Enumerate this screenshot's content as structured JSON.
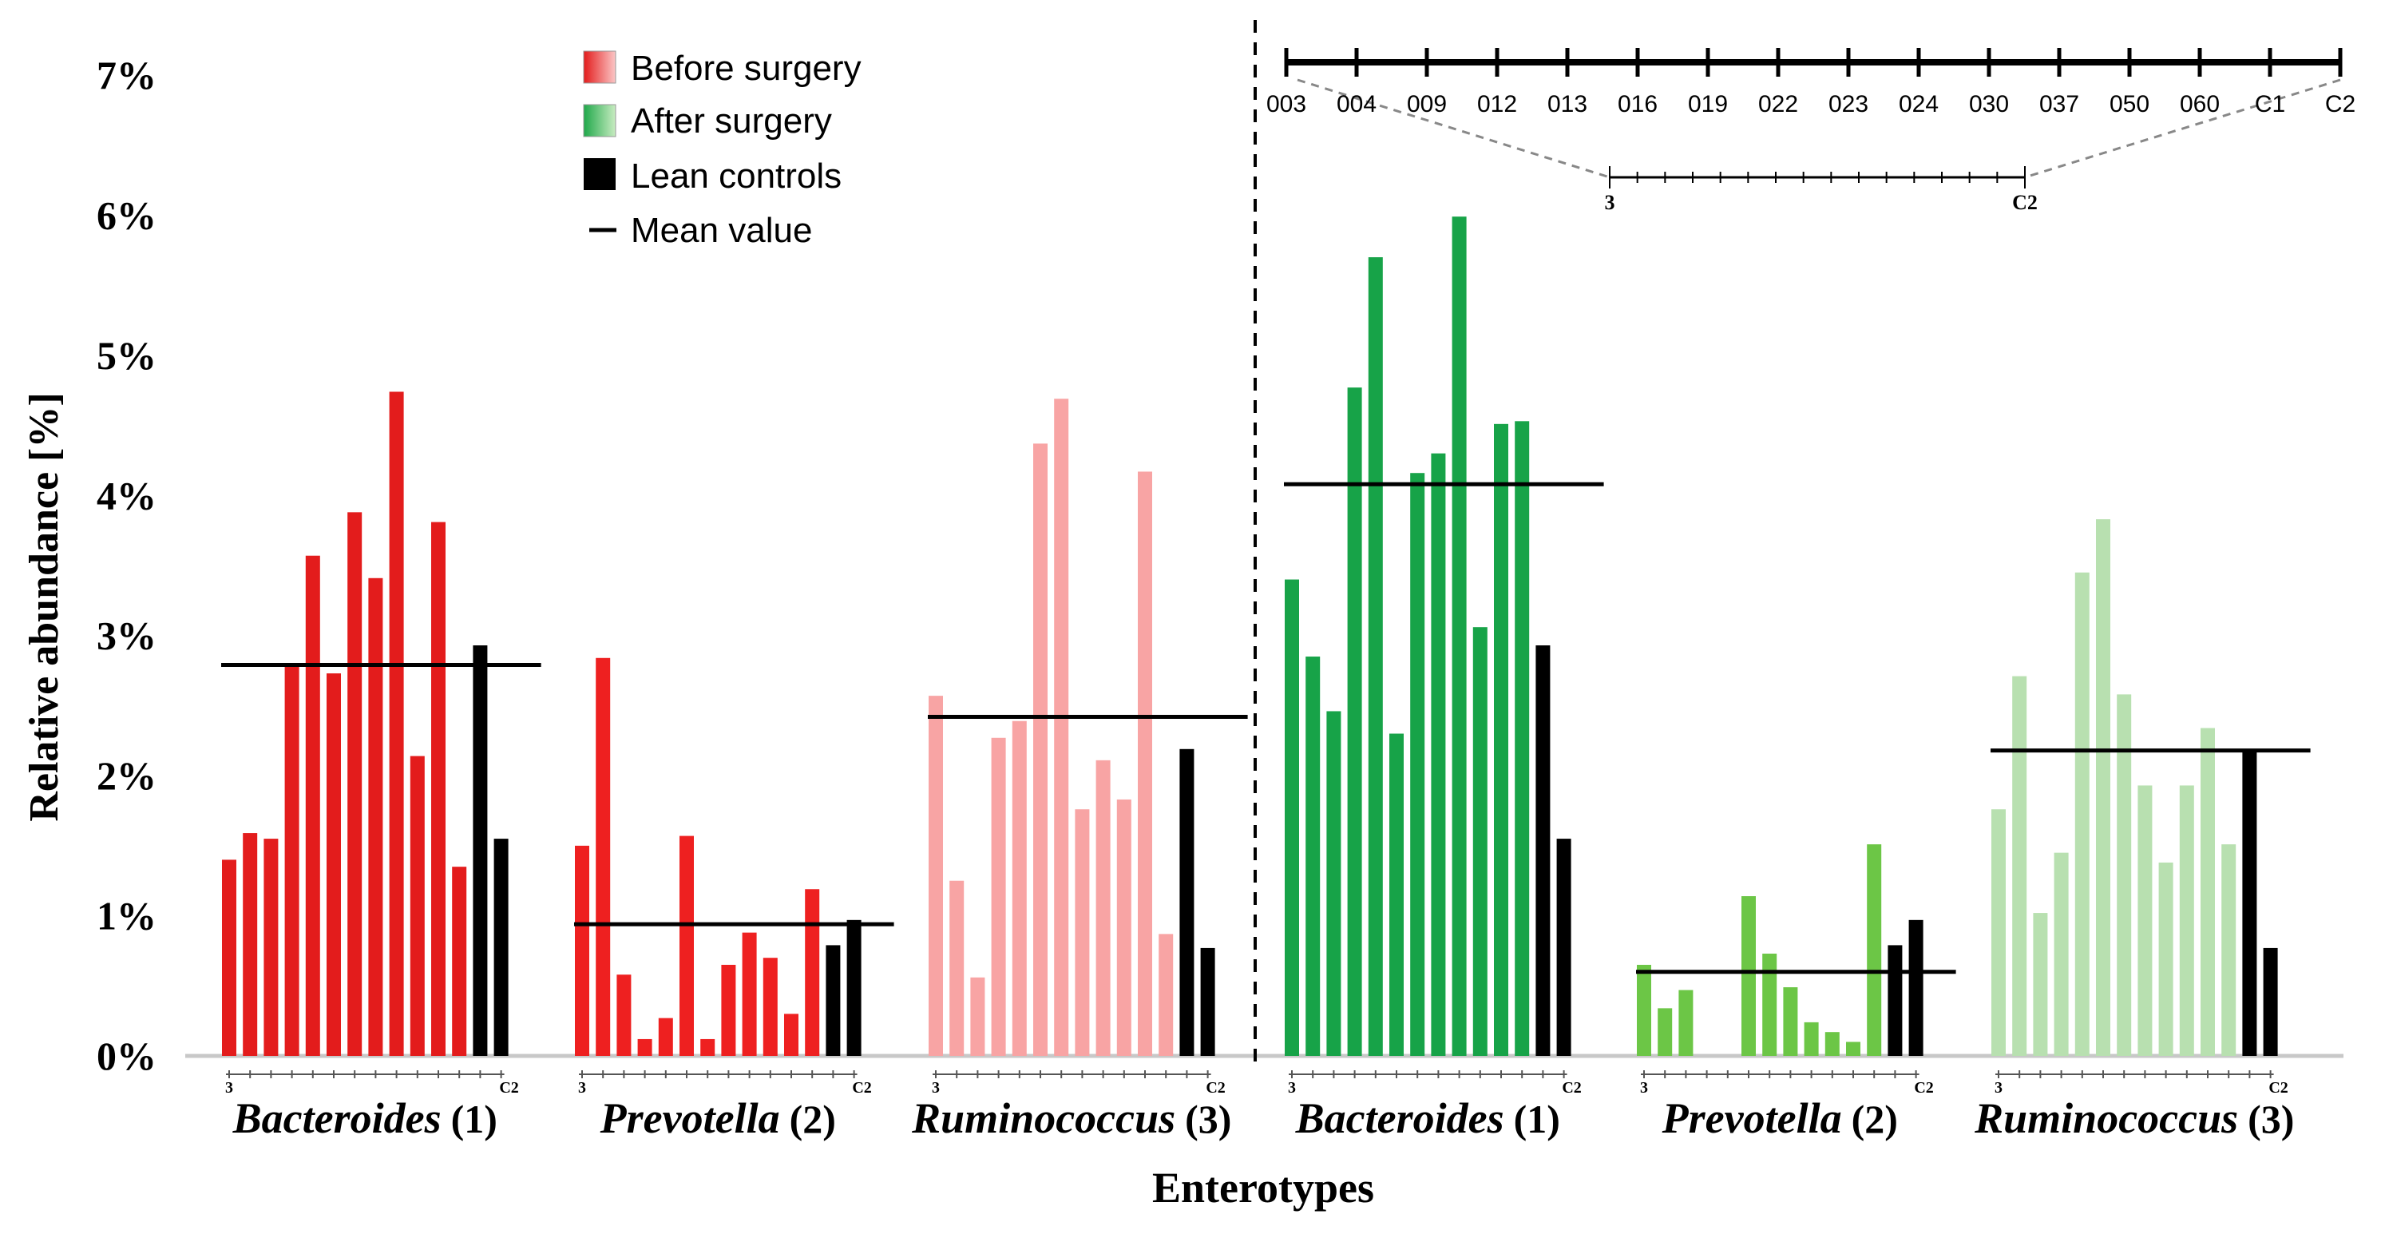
{
  "chart_data": {
    "type": "bar",
    "title": "",
    "xlabel": "Enterotypes",
    "ylabel": "Relative abundance [%]",
    "ylim": [
      0,
      7
    ],
    "yticks": [
      "0%",
      "1%",
      "2%",
      "3%",
      "4%",
      "5%",
      "6%",
      "7%"
    ],
    "legend": [
      {
        "name": "Before surgery",
        "color": "#e31c1c"
      },
      {
        "name": "After surgery",
        "color": "#1fa84a"
      },
      {
        "name": "Lean controls",
        "color": "#000000"
      },
      {
        "name": "Mean value",
        "color": "#000000"
      }
    ],
    "key_axis_labels": [
      "003",
      "004",
      "009",
      "012",
      "013",
      "016",
      "019",
      "022",
      "023",
      "024",
      "030",
      "037",
      "050",
      "060",
      "C1",
      "C2"
    ],
    "zoom_labels": [
      "3",
      "C2"
    ],
    "bar_end_labels": [
      "3",
      "C2"
    ],
    "groups": [
      {
        "genus": "Bacteroides",
        "num": "(1)",
        "phase": "before",
        "color": "#e31c1c",
        "values": [
          1.4,
          1.59,
          1.55,
          2.78,
          3.57,
          2.73,
          3.88,
          3.41,
          4.74,
          2.14,
          3.81,
          1.35,
          2.93,
          1.55
        ],
        "mean": 2.79
      },
      {
        "genus": "Prevotella",
        "num": "(2)",
        "phase": "before",
        "color": "#ee2020",
        "values": [
          1.5,
          2.84,
          0.58,
          0.12,
          0.27,
          1.57,
          0.12,
          0.65,
          0.88,
          0.7,
          0.3,
          1.19,
          0.79,
          0.97
        ],
        "mean": 0.94
      },
      {
        "genus": "Ruminococcus",
        "num": "(3)",
        "phase": "before",
        "color": "#f8a4a4",
        "values": [
          2.57,
          1.25,
          0.56,
          2.27,
          2.39,
          4.37,
          4.69,
          1.76,
          2.11,
          1.83,
          4.17,
          0.87,
          2.19,
          0.77
        ],
        "mean": 2.42
      },
      {
        "genus": "Bacteroides",
        "num": "(1)",
        "phase": "after",
        "color": "#17a348",
        "values": [
          3.4,
          2.85,
          2.46,
          4.77,
          5.7,
          2.3,
          4.16,
          4.3,
          5.99,
          3.06,
          4.51,
          4.53,
          2.93,
          1.55
        ],
        "mean": 4.08
      },
      {
        "genus": "Prevotella",
        "num": "(2)",
        "phase": "after",
        "color": "#6cc646",
        "values": [
          0.65,
          0.34,
          0.47,
          null,
          null,
          1.14,
          0.73,
          0.49,
          0.24,
          0.17,
          0.1,
          1.51,
          0.79,
          0.97
        ],
        "mean": 0.6
      },
      {
        "genus": "Ruminococcus",
        "num": "(3)",
        "phase": "after",
        "color": "#b8e0b0",
        "values": [
          1.76,
          2.71,
          1.02,
          1.45,
          3.45,
          3.83,
          2.58,
          1.93,
          1.38,
          1.93,
          2.34,
          1.51,
          2.19,
          0.77
        ],
        "mean": 2.18
      }
    ]
  }
}
